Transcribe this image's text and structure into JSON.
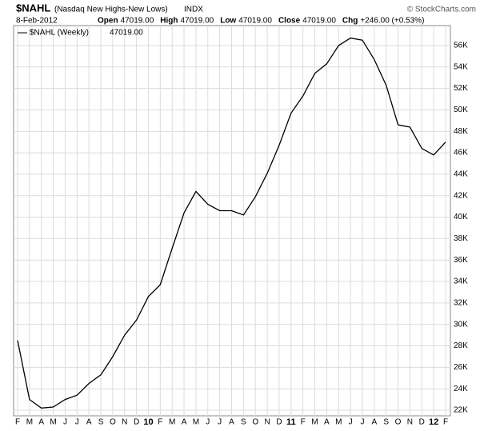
{
  "header": {
    "symbol": "$NAHL",
    "description": "(Nasdaq New Highs-New Lows)",
    "exchange": "INDX",
    "source": "© StockCharts.com",
    "date": "8-Feb-2012",
    "quote": [
      {
        "label": "Open",
        "value": "47019.00"
      },
      {
        "label": "High",
        "value": "47019.00"
      },
      {
        "label": "Low",
        "value": "47019.00"
      },
      {
        "label": "Close",
        "value": "47019.00"
      },
      {
        "label": "Chg",
        "value": "+246.00 (+0.53%)"
      }
    ],
    "legend_value": "47019.00"
  },
  "chart_data": {
    "type": "line",
    "categories": [
      "F",
      "M",
      "A",
      "M",
      "J",
      "J",
      "A",
      "S",
      "O",
      "N",
      "D",
      "10",
      "F",
      "M",
      "A",
      "M",
      "J",
      "J",
      "A",
      "S",
      "O",
      "N",
      "D",
      "11",
      "F",
      "M",
      "A",
      "M",
      "J",
      "J",
      "A",
      "S",
      "O",
      "N",
      "D",
      "12",
      "F"
    ],
    "series": [
      {
        "name": "$NAHL (Weekly)",
        "color": "#000000",
        "values": [
          28500,
          23000,
          22200,
          22300,
          23000,
          23400,
          24500,
          25300,
          27000,
          29000,
          30400,
          32600,
          33700,
          37100,
          40400,
          42400,
          41200,
          40600,
          40600,
          40200,
          41900,
          44100,
          46700,
          49700,
          51300,
          53400,
          54300,
          56000,
          56700,
          56500,
          54700,
          52300,
          48600,
          48400,
          46400,
          45800,
          47000
        ]
      }
    ],
    "ylim": [
      21480,
      57860
    ],
    "yticks": [
      {
        "value": 22000,
        "label": "22K"
      },
      {
        "value": 24000,
        "label": "24K"
      },
      {
        "value": 26000,
        "label": "26K"
      },
      {
        "value": 28000,
        "label": "28K"
      },
      {
        "value": 30000,
        "label": "30K"
      },
      {
        "value": 32000,
        "label": "32K"
      },
      {
        "value": 34000,
        "label": "34K"
      },
      {
        "value": 36000,
        "label": "36K"
      },
      {
        "value": 38000,
        "label": "38K"
      },
      {
        "value": 40000,
        "label": "40K"
      },
      {
        "value": 42000,
        "label": "42K"
      },
      {
        "value": 44000,
        "label": "44K"
      },
      {
        "value": 46000,
        "label": "46K"
      },
      {
        "value": 48000,
        "label": "48K"
      },
      {
        "value": 50000,
        "label": "50K"
      },
      {
        "value": 52000,
        "label": "52K"
      },
      {
        "value": 54000,
        "label": "54K"
      },
      {
        "value": 56000,
        "label": "56K"
      }
    ],
    "grid": true
  }
}
